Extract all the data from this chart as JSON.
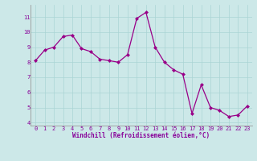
{
  "xlabel": "Windchill (Refroidissement éolien,°C)",
  "bg_color": "#cce8e8",
  "line_color": "#990088",
  "marker_color": "#990088",
  "x": [
    0,
    1,
    2,
    3,
    4,
    5,
    6,
    7,
    8,
    9,
    10,
    11,
    12,
    13,
    14,
    15,
    16,
    17,
    18,
    19,
    20,
    21,
    22,
    23
  ],
  "y": [
    8.1,
    8.8,
    9.0,
    9.7,
    9.8,
    8.9,
    8.7,
    8.2,
    8.1,
    8.0,
    8.5,
    10.9,
    11.3,
    9.0,
    8.0,
    7.5,
    7.2,
    4.6,
    6.5,
    5.0,
    4.8,
    4.4,
    4.5,
    5.1
  ],
  "xlim": [
    -0.5,
    23.5
  ],
  "ylim": [
    3.8,
    11.8
  ],
  "xticks": [
    0,
    1,
    2,
    3,
    4,
    5,
    6,
    7,
    8,
    9,
    10,
    11,
    12,
    13,
    14,
    15,
    16,
    17,
    18,
    19,
    20,
    21,
    22,
    23
  ],
  "yticks": [
    4,
    5,
    6,
    7,
    8,
    9,
    10,
    11
  ],
  "grid_color": "#aad4d4",
  "font_color": "#880099",
  "tick_fontsize": 5.0,
  "xlabel_fontsize": 5.5,
  "linewidth": 0.9,
  "markersize": 2.0
}
